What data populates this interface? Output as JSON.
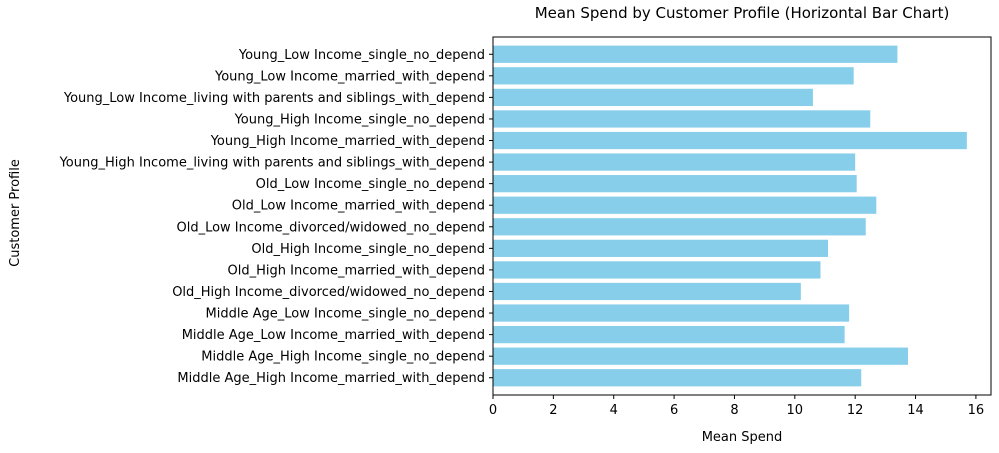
{
  "chart_data": {
    "type": "bar",
    "orientation": "horizontal",
    "title": "Mean Spend by Customer Profile (Horizontal Bar Chart)",
    "xlabel": "Mean Spend",
    "ylabel": "Customer Profile",
    "xlim": [
      0,
      16.5
    ],
    "xticks": [
      0,
      2,
      4,
      6,
      8,
      10,
      12,
      14,
      16
    ],
    "grid": false,
    "bar_color": "#87CEEB",
    "categories": [
      "Young_Low Income_single_no_depend",
      "Young_Low Income_married_with_depend",
      "Young_Low Income_living with parents and siblings_with_depend",
      "Young_High Income_single_no_depend",
      "Young_High Income_married_with_depend",
      "Young_High Income_living with parents and siblings_with_depend",
      "Old_Low Income_single_no_depend",
      "Old_Low Income_married_with_depend",
      "Old_Low Income_divorced/widowed_no_depend",
      "Old_High Income_single_no_depend",
      "Old_High Income_married_with_depend",
      "Old_High Income_divorced/widowed_no_depend",
      "Middle Age_Low Income_single_no_depend",
      "Middle Age_Low Income_married_with_depend",
      "Middle Age_High Income_single_no_depend",
      "Middle Age_High Income_married_with_depend"
    ],
    "values": [
      13.4,
      11.95,
      10.6,
      12.5,
      15.7,
      12.0,
      12.05,
      12.7,
      12.35,
      11.1,
      10.85,
      10.2,
      11.8,
      11.65,
      13.75,
      12.2
    ]
  }
}
